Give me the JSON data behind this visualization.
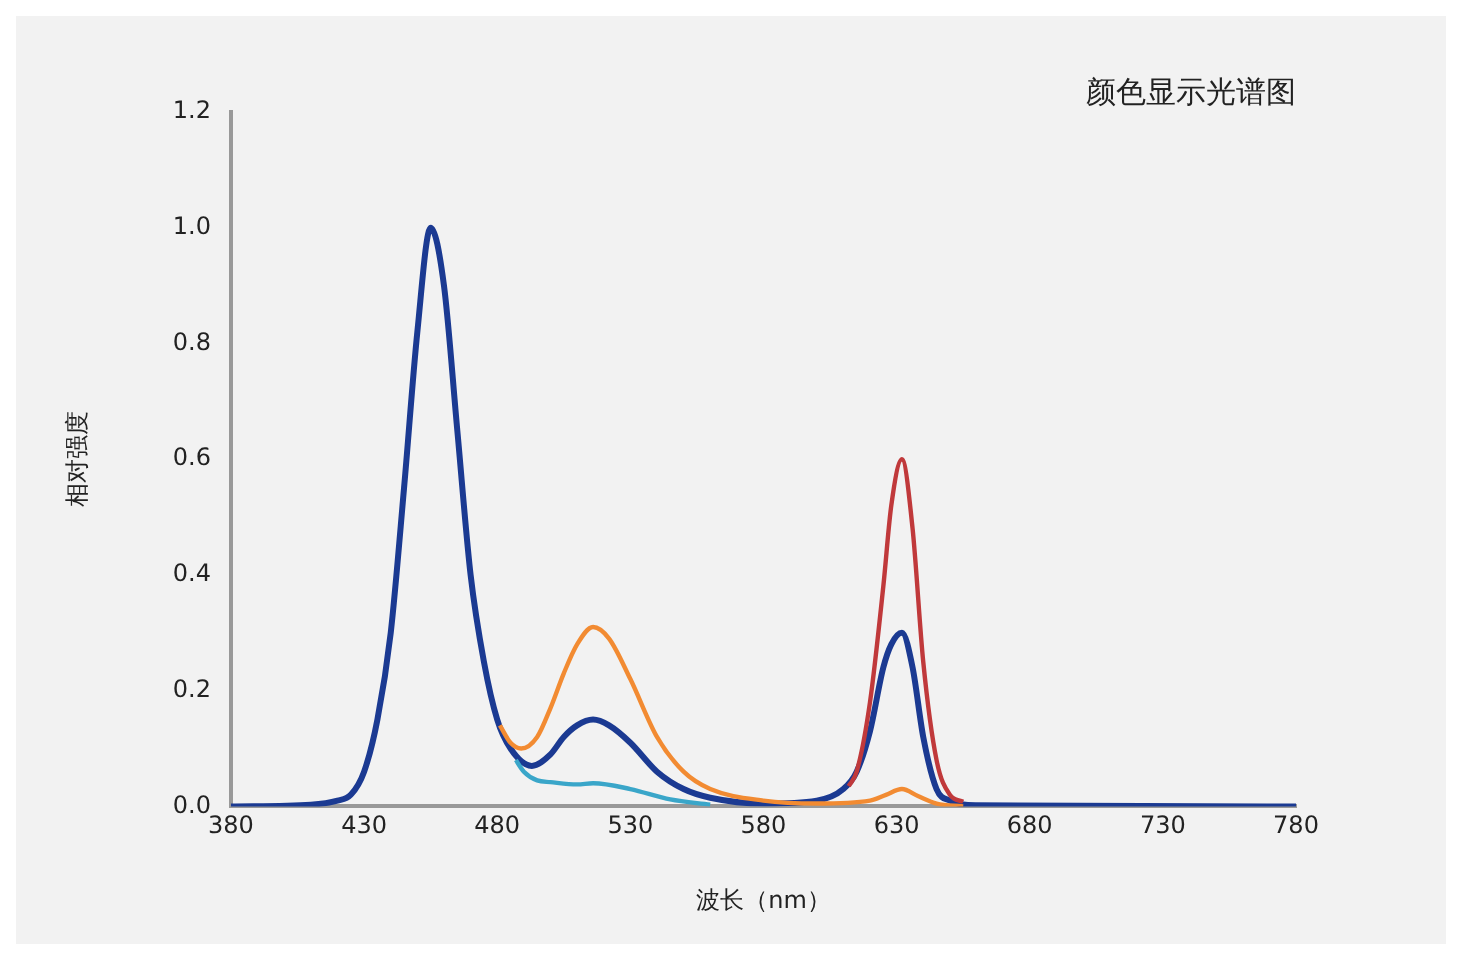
{
  "chart_data": {
    "type": "line",
    "title": "颜色显示光谱图",
    "xlabel": "波长（nm）",
    "ylabel": "相对强度",
    "xlim": [
      380,
      780
    ],
    "xticks": [
      380,
      430,
      480,
      530,
      580,
      630,
      680,
      730,
      780
    ],
    "ylim": [
      0,
      1.2
    ],
    "yticks": [
      {
        "value": 0,
        "label": "0.0"
      },
      {
        "value": 0.2,
        "label": "0.2"
      },
      {
        "value": 0.4,
        "label": "0.4"
      },
      {
        "value": 0.6,
        "label": "0.6"
      },
      {
        "value": 0.8,
        "label": "0.8"
      },
      {
        "value": 1,
        "label": "1.0"
      },
      {
        "value": 1.2,
        "label": "1.2"
      }
    ],
    "grid": false,
    "legend": false,
    "marker": "none",
    "line_style": "solid",
    "series": [
      {
        "color": "#3aa6c9",
        "x": [
          487,
          490,
          495,
          500,
          510,
          516,
          530,
          545,
          560
        ],
        "values": [
          0.08,
          0.06,
          0.045,
          0.042,
          0.038,
          0.04,
          0.03,
          0.012,
          0.003
        ]
      },
      {
        "color": "#f28b32",
        "x": [
          481,
          485,
          489,
          495,
          500,
          505,
          510,
          516,
          522,
          530,
          540,
          550,
          560,
          580,
          600,
          620,
          626,
          632,
          638,
          645,
          655
        ],
        "values": [
          0.14,
          0.11,
          0.1,
          0.12,
          0.17,
          0.23,
          0.28,
          0.31,
          0.29,
          0.22,
          0.12,
          0.06,
          0.03,
          0.01,
          0.005,
          0.01,
          0.02,
          0.03,
          0.018,
          0.005,
          0
        ]
      },
      {
        "color": "#c0393b",
        "x": [
          612,
          615,
          620,
          625,
          628,
          632,
          636,
          640,
          645,
          650,
          655
        ],
        "values": [
          0.035,
          0.06,
          0.18,
          0.38,
          0.52,
          0.6,
          0.48,
          0.25,
          0.08,
          0.02,
          0.008
        ]
      },
      {
        "color": "#1b3a92",
        "x": [
          380,
          410,
          420,
          425,
          430,
          435,
          440,
          445,
          450,
          455,
          460,
          465,
          470,
          475,
          480,
          485,
          493,
          500,
          505,
          510,
          516,
          522,
          530,
          540,
          550,
          560,
          580,
          600,
          610,
          615,
          620,
          625,
          628,
          632,
          636,
          640,
          645,
          650,
          660,
          780
        ],
        "values": [
          0,
          0.003,
          0.01,
          0.02,
          0.06,
          0.15,
          0.3,
          0.55,
          0.82,
          1.0,
          0.9,
          0.65,
          0.4,
          0.25,
          0.15,
          0.1,
          0.07,
          0.09,
          0.12,
          0.14,
          0.15,
          0.14,
          0.11,
          0.06,
          0.03,
          0.015,
          0.005,
          0.01,
          0.03,
          0.06,
          0.13,
          0.24,
          0.28,
          0.3,
          0.24,
          0.12,
          0.03,
          0.01,
          0.002,
          0
        ]
      }
    ]
  }
}
